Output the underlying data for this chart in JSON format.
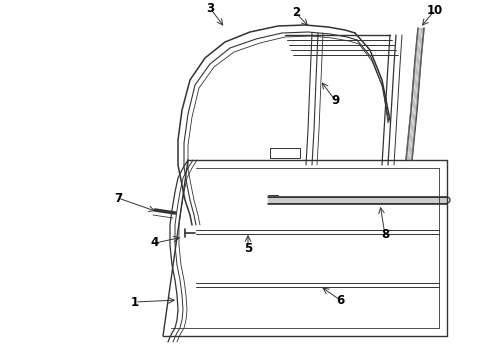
{
  "bg_color": "#ffffff",
  "line_color": "#333333",
  "label_color": "#000000",
  "figsize": [
    4.9,
    3.6
  ],
  "dpi": 100,
  "line_width": 0.9
}
